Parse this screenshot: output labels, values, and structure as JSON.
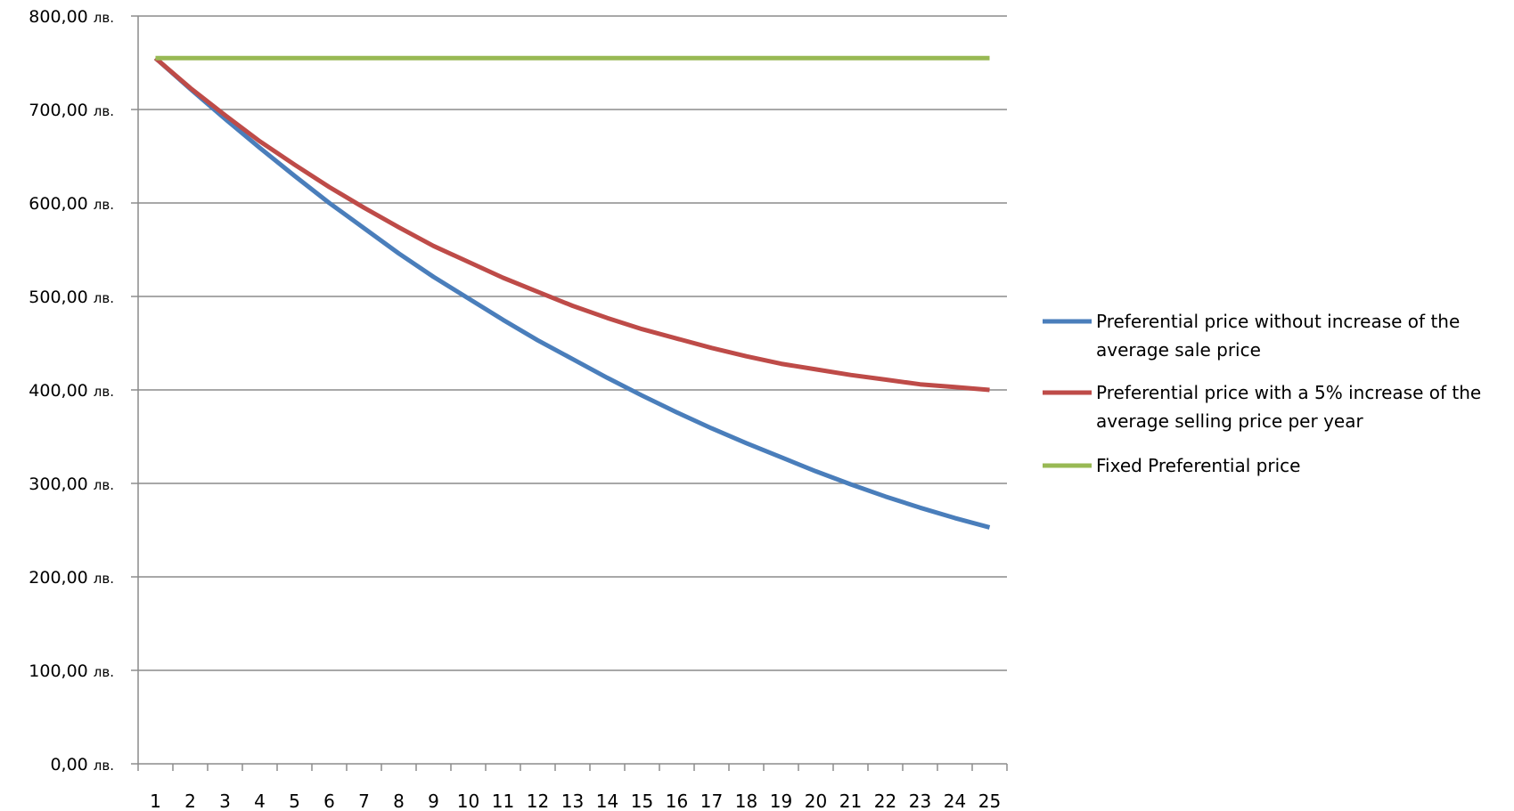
{
  "chart_data": {
    "type": "line",
    "title": "",
    "xlabel": "",
    "ylabel": "",
    "ylim": [
      0,
      800
    ],
    "y_ticks": [
      {
        "value": 0,
        "num": "0,00",
        "unit": "лв."
      },
      {
        "value": 100,
        "num": "100,00",
        "unit": "лв."
      },
      {
        "value": 200,
        "num": "200,00",
        "unit": "лв."
      },
      {
        "value": 300,
        "num": "300,00",
        "unit": "лв."
      },
      {
        "value": 400,
        "num": "400,00",
        "unit": "лв."
      },
      {
        "value": 500,
        "num": "500,00",
        "unit": "лв."
      },
      {
        "value": 600,
        "num": "600,00",
        "unit": "лв."
      },
      {
        "value": 700,
        "num": "700,00",
        "unit": "лв."
      },
      {
        "value": 800,
        "num": "800,00",
        "unit": "лв."
      }
    ],
    "categories": [
      "1",
      "2",
      "3",
      "4",
      "5",
      "6",
      "7",
      "8",
      "9",
      "10",
      "11",
      "12",
      "13",
      "14",
      "15",
      "16",
      "17",
      "18",
      "19",
      "20",
      "21",
      "22",
      "23",
      "24",
      "25"
    ],
    "grid": true,
    "legend_position": "right",
    "series": [
      {
        "name": "Preferential price without increase of the average sale price",
        "legend_lines": [
          "Preferential price without increase of the",
          "average sale price"
        ],
        "color": "#4a7ebb",
        "values": [
          755,
          722,
          690,
          659,
          629,
          600,
          573,
          546,
          521,
          498,
          475,
          453,
          433,
          413,
          394,
          376,
          359,
          343,
          328,
          313,
          299,
          286,
          274,
          263,
          253
        ]
      },
      {
        "name": "Preferential price with a 5% increase of the average selling price per year",
        "legend_lines": [
          "Preferential price with a 5% increase of the",
          "average selling price per year"
        ],
        "color": "#be4b48",
        "values": [
          755,
          723,
          694,
          666,
          641,
          617,
          595,
          574,
          554,
          537,
          520,
          505,
          490,
          477,
          465,
          455,
          445,
          436,
          428,
          422,
          416,
          411,
          406,
          403,
          400
        ]
      },
      {
        "name": "Fixed Preferential price",
        "legend_lines": [
          "Fixed Preferential price"
        ],
        "color": "#98b954",
        "values": [
          755,
          755,
          755,
          755,
          755,
          755,
          755,
          755,
          755,
          755,
          755,
          755,
          755,
          755,
          755,
          755,
          755,
          755,
          755,
          755,
          755,
          755,
          755,
          755,
          755
        ]
      }
    ]
  }
}
